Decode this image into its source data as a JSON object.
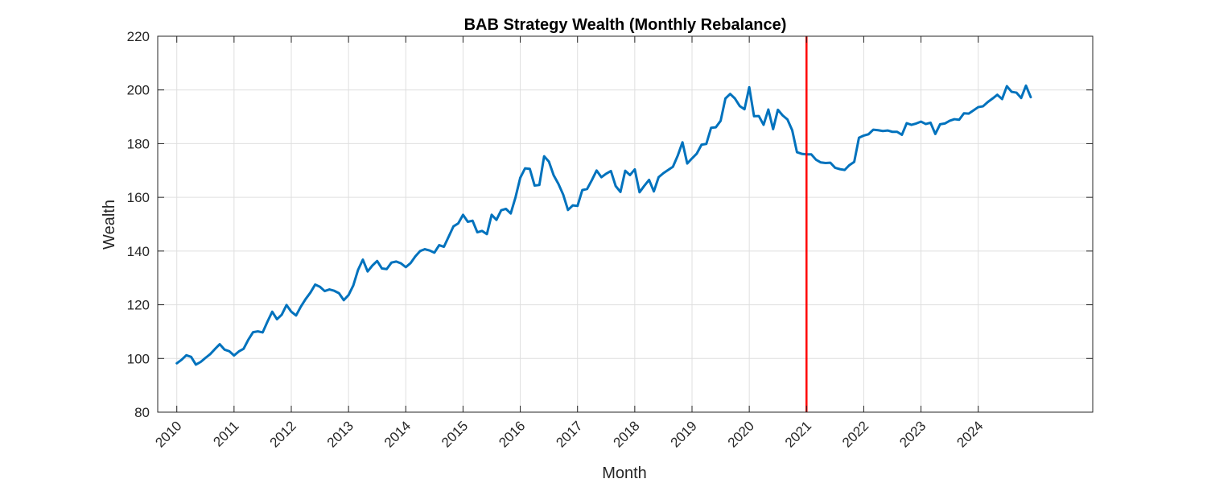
{
  "chart_data": {
    "type": "line",
    "title": "BAB Strategy Wealth (Monthly Rebalance)",
    "xlabel": "Month",
    "ylabel": "Wealth",
    "ylim": [
      80,
      220
    ],
    "yticks": [
      80,
      100,
      120,
      140,
      160,
      180,
      200,
      220
    ],
    "xlim": [
      "2009-09",
      "2026-01"
    ],
    "xticks": [
      "2010",
      "2011",
      "2012",
      "2013",
      "2014",
      "2015",
      "2016",
      "2017",
      "2018",
      "2019",
      "2020",
      "2021",
      "2022",
      "2023",
      "2024"
    ],
    "grid": true,
    "start_month": "2010-01",
    "series": [
      {
        "color": "#0072BD",
        "values": [
          98.2,
          99.5,
          101.2,
          100.6,
          97.7,
          98.7,
          100.2,
          101.6,
          103.5,
          105.3,
          103.3,
          102.7,
          101.1,
          102.6,
          103.6,
          107.0,
          109.8,
          110.1,
          109.7,
          113.7,
          117.4,
          114.6,
          116.3,
          119.9,
          117.4,
          116.0,
          119.3,
          122.1,
          124.5,
          127.5,
          126.7,
          125.1,
          125.7,
          125.2,
          124.3,
          121.7,
          123.6,
          127.2,
          133.0,
          136.8,
          132.4,
          134.6,
          136.3,
          133.5,
          133.3,
          135.7,
          136.1,
          135.4,
          134.0,
          135.5,
          138.0,
          140.0,
          140.7,
          140.2,
          139.4,
          142.2,
          141.6,
          145.4,
          149.2,
          150.3,
          153.5,
          150.9,
          151.3,
          147.0,
          147.5,
          146.3,
          153.5,
          151.6,
          155.2,
          155.7,
          154.0,
          160.0,
          167.3,
          170.8,
          170.6,
          164.4,
          164.6,
          175.3,
          173.3,
          168.2,
          165.0,
          161.0,
          155.3,
          157.0,
          156.8,
          162.7,
          163.1,
          166.4,
          170.0,
          167.5,
          168.8,
          169.8,
          164.2,
          162.0,
          169.9,
          168.3,
          170.4,
          161.9,
          164.3,
          166.5,
          162.2,
          167.5,
          169.0,
          170.2,
          171.4,
          175.5,
          180.5,
          172.6,
          174.5,
          176.3,
          179.6,
          179.9,
          185.9,
          186.1,
          188.5,
          196.8,
          198.5,
          196.8,
          194.0,
          192.8,
          201.0,
          190.2,
          190.3,
          187.0,
          192.7,
          185.4,
          192.6,
          190.5,
          189.0,
          185.0,
          176.8,
          176.2,
          176.0,
          176.0,
          174.0,
          173.0,
          172.8,
          172.9,
          171.0,
          170.5,
          170.2,
          172.0,
          173.2,
          182.2,
          183.0,
          183.5,
          185.2,
          185.0,
          184.7,
          184.9,
          184.4,
          184.4,
          183.3,
          187.6,
          187.0,
          187.5,
          188.2,
          187.3,
          187.8,
          183.6,
          187.2,
          187.5,
          188.5,
          189.1,
          188.9,
          191.3,
          191.2,
          192.4,
          193.6,
          193.9,
          195.5,
          196.8,
          198.2,
          196.6,
          201.4,
          199.3,
          199.0,
          197.0,
          201.6,
          197.3
        ]
      }
    ],
    "annotations": [
      {
        "type": "vertical-line",
        "x": "2021-01",
        "color": "#FF0000"
      }
    ]
  }
}
